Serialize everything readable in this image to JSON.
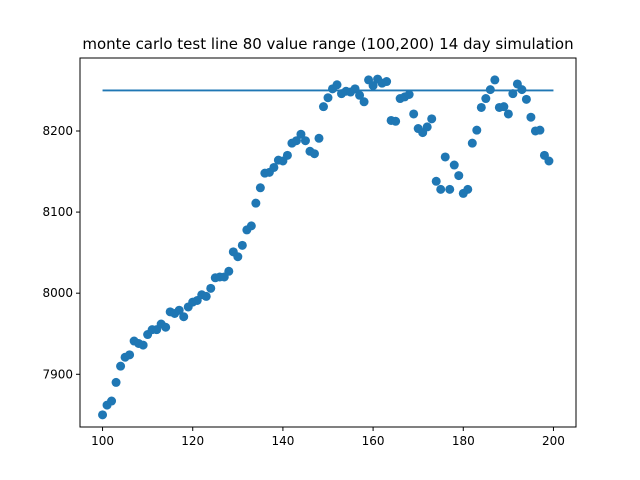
{
  "chart_data": {
    "type": "scatter",
    "title": "monte carlo test line 80 value range (100,200) 14 day simulation",
    "xlabel": "",
    "ylabel": "",
    "xlim": [
      95,
      205
    ],
    "ylim": [
      7835,
      8290
    ],
    "x_ticks": [
      100,
      120,
      140,
      160,
      180,
      200
    ],
    "y_ticks": [
      7900,
      8000,
      8100,
      8200
    ],
    "grid": false,
    "reference_line": {
      "value": 8250,
      "x_range": [
        100,
        200
      ],
      "color": "#1f77b4"
    },
    "series": [
      {
        "color": "#1f77b4",
        "x": [
          100,
          101,
          102,
          103,
          104,
          105,
          106,
          107,
          108,
          109,
          110,
          111,
          112,
          113,
          114,
          115,
          116,
          117,
          118,
          119,
          120,
          121,
          122,
          123,
          124,
          125,
          126,
          127,
          128,
          129,
          130,
          131,
          132,
          133,
          134,
          135,
          136,
          137,
          138,
          139,
          140,
          141,
          142,
          143,
          144,
          145,
          146,
          147,
          148,
          149,
          150,
          151,
          152,
          153,
          154,
          155,
          156,
          157,
          158,
          159,
          160,
          161,
          162,
          163,
          164,
          165,
          166,
          167,
          168,
          169,
          170,
          171,
          172,
          173,
          174,
          175,
          176,
          177,
          178,
          179,
          180,
          181,
          182,
          183,
          184,
          185,
          186,
          187,
          188,
          189,
          190,
          191,
          192,
          193,
          194,
          195,
          196,
          197,
          198,
          199
        ],
        "y": [
          7850,
          7862,
          7867,
          7890,
          7910,
          7921,
          7924,
          7941,
          7938,
          7936,
          7949,
          7955,
          7955,
          7962,
          7958,
          7977,
          7975,
          7979,
          7971,
          7983,
          7989,
          7991,
          7998,
          7996,
          8006,
          8019,
          8020,
          8020,
          8027,
          8051,
          8045,
          8059,
          8078,
          8083,
          8111,
          8130,
          8148,
          8149,
          8155,
          8164,
          8163,
          8170,
          8185,
          8188,
          8196,
          8188,
          8175,
          8172,
          8191,
          8230,
          8241,
          8252,
          8257,
          8246,
          8249,
          8248,
          8252,
          8244,
          8236,
          8263,
          8256,
          8264,
          8259,
          8261,
          8213,
          8212,
          8240,
          8242,
          8245,
          8221,
          8203,
          8198,
          8205,
          8215,
          8138,
          8128,
          8168,
          8128,
          8158,
          8145,
          8123,
          8128,
          8185,
          8201,
          8229,
          8240,
          8251,
          8263,
          8229,
          8230,
          8221,
          8246,
          8258,
          8251,
          8239,
          8217,
          8200,
          8201,
          8170,
          8163
        ]
      }
    ]
  }
}
